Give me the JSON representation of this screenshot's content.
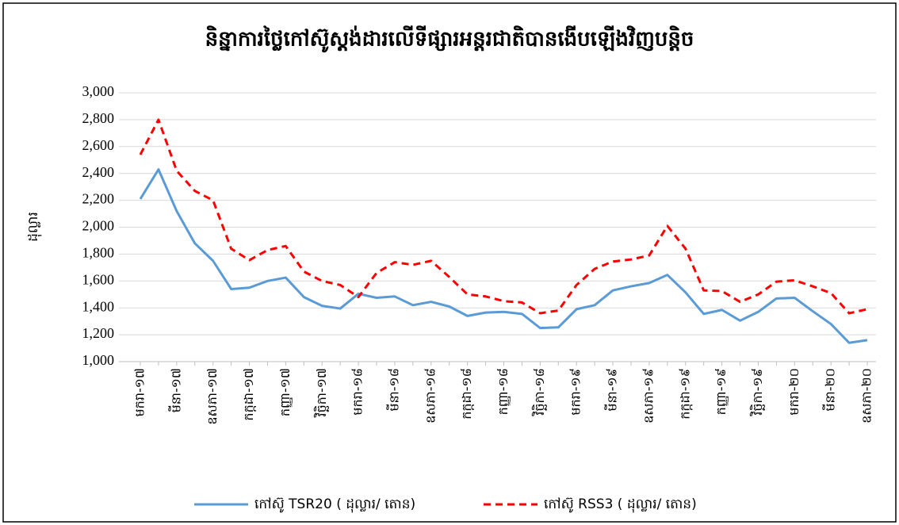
{
  "chart_data": {
    "type": "line",
    "title": "និន្នាការថ្លៃកៅស៊ូស្តង់ដារលើទីផ្សារអន្តរជាតិបានងើបឡើងវិញបន្តិច",
    "y_label": "ដុល្លារ",
    "categories": [
      "មករា-១៧",
      null,
      "មីនា-១៧",
      null,
      "ឧសភា-១៧",
      null,
      "កក្កដា-១៧",
      null,
      "កញ្ញា-១៧",
      null,
      "វិច្ឆិកា-១៧",
      null,
      "មករា-១៨",
      null,
      "មីនា-១៨",
      null,
      "ឧសភា-១៨",
      null,
      "កក្កដា-១៨",
      null,
      "កញ្ញា-១៨",
      null,
      "វិច្ឆិកា-១៨",
      null,
      "មករា-១៩",
      null,
      "មីនា-១៩",
      null,
      "ឧសភា-១៩",
      null,
      "កក្កដា-១៩",
      null,
      "កញ្ញា-១៩",
      null,
      "វិច្ឆិកា-១៩",
      null,
      "មករា-២០",
      null,
      "មីនា-២០",
      null,
      "ឧសភា-២០"
    ],
    "series": [
      {
        "name": "កៅស៊ូ TSR20 ( ដុល្លារ/ តោន)",
        "color": "#5b9bd5",
        "dash": false,
        "values": [
          2210,
          2430,
          2120,
          1880,
          1750,
          1540,
          1550,
          1600,
          1625,
          1480,
          1415,
          1395,
          1505,
          1475,
          1485,
          1420,
          1445,
          1410,
          1340,
          1365,
          1370,
          1355,
          1250,
          1255,
          1390,
          1420,
          1530,
          1560,
          1585,
          1645,
          1515,
          1355,
          1385,
          1305,
          1370,
          1470,
          1475,
          1375,
          1280,
          1140,
          1160
        ]
      },
      {
        "name": "កៅស៊ូ RSS3 ( ដុល្លារ/ តោន)",
        "color": "#ff0000",
        "dash": true,
        "values": [
          2540,
          2800,
          2420,
          2270,
          2200,
          1840,
          1755,
          1830,
          1860,
          1670,
          1600,
          1570,
          1480,
          1660,
          1740,
          1720,
          1750,
          1630,
          1500,
          1485,
          1450,
          1440,
          1360,
          1380,
          1570,
          1690,
          1745,
          1760,
          1790,
          2010,
          1840,
          1530,
          1525,
          1445,
          1500,
          1595,
          1605,
          1560,
          1510,
          1360,
          1390
        ]
      }
    ],
    "ylim": [
      1000,
      3000
    ],
    "yticks": [
      {
        "value": 1000,
        "label": "1,000"
      },
      {
        "value": 1200,
        "label": "1,200"
      },
      {
        "value": 1400,
        "label": "1,400"
      },
      {
        "value": 1600,
        "label": "1,600"
      },
      {
        "value": 1800,
        "label": "1,800"
      },
      {
        "value": 2000,
        "label": "2,000"
      },
      {
        "value": 2200,
        "label": "2,200"
      },
      {
        "value": 2400,
        "label": "2,400"
      },
      {
        "value": 2600,
        "label": "2,600"
      },
      {
        "value": 2800,
        "label": "2,800"
      },
      {
        "value": 3000,
        "label": "3,000"
      }
    ],
    "grid": true
  }
}
